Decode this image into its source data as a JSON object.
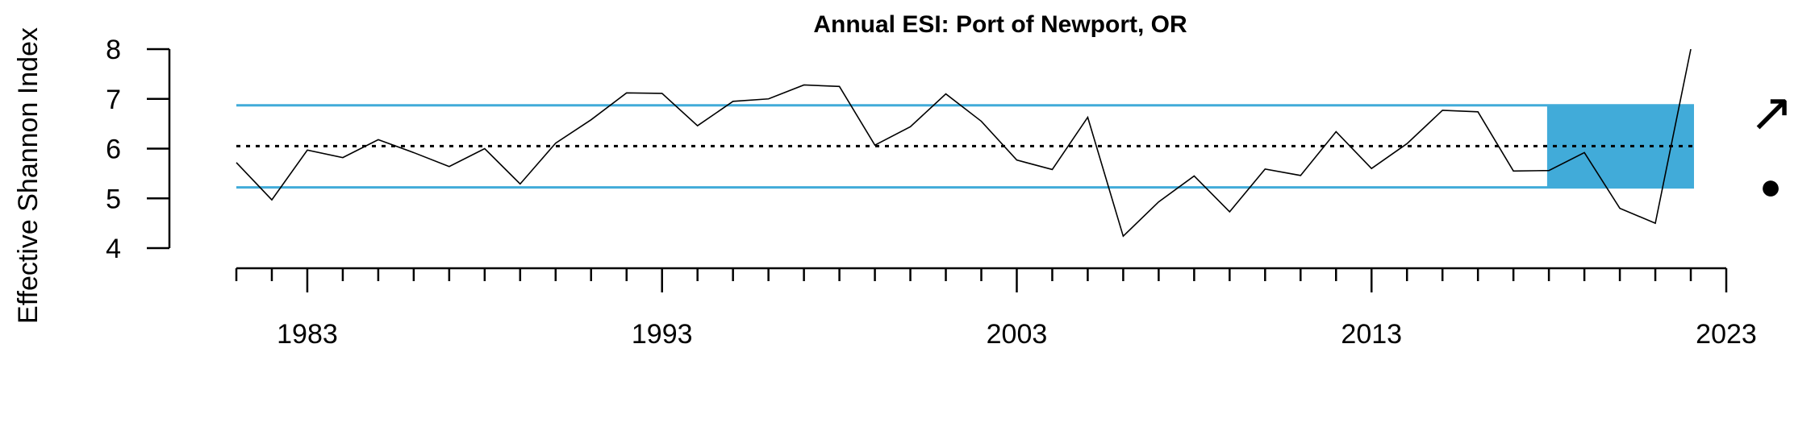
{
  "chart_data": {
    "type": "line",
    "title": "Annual ESI: Port of Newport, OR",
    "ylabel": "Effective Shannon Index",
    "xlabel": "",
    "xlim": [
      1981,
      2023
    ],
    "ylim": [
      4,
      8
    ],
    "x_ticks": [
      1983,
      1993,
      2003,
      2013,
      2023
    ],
    "y_ticks": [
      4,
      5,
      6,
      7,
      8
    ],
    "mean": 6.05,
    "upper_sd": 6.87,
    "lower_sd": 5.22,
    "recent_window": [
      2018,
      2022
    ],
    "trend_symbol": "↗",
    "mean_symbol": "●",
    "colors": {
      "band": "#41abd9",
      "line": "#000000",
      "mean_line": "#000000"
    },
    "x": [
      1981,
      1982,
      1983,
      1984,
      1985,
      1986,
      1987,
      1988,
      1989,
      1990,
      1991,
      1992,
      1993,
      1994,
      1995,
      1996,
      1997,
      1998,
      1999,
      2000,
      2001,
      2002,
      2003,
      2004,
      2005,
      2006,
      2007,
      2008,
      2009,
      2010,
      2011,
      2012,
      2013,
      2014,
      2015,
      2016,
      2017,
      2018,
      2019,
      2020,
      2021,
      2022
    ],
    "y": [
      5.72,
      4.97,
      5.97,
      5.82,
      6.18,
      5.92,
      5.64,
      6.0,
      5.29,
      6.11,
      6.58,
      7.12,
      7.11,
      6.46,
      6.95,
      7.0,
      7.28,
      7.25,
      6.07,
      6.44,
      7.1,
      6.55,
      5.77,
      5.58,
      6.63,
      4.24,
      4.93,
      5.45,
      4.73,
      5.59,
      5.46,
      6.34,
      5.6,
      6.1,
      6.77,
      6.74,
      5.55,
      5.56,
      5.92,
      4.8,
      4.5,
      8.0
    ]
  }
}
